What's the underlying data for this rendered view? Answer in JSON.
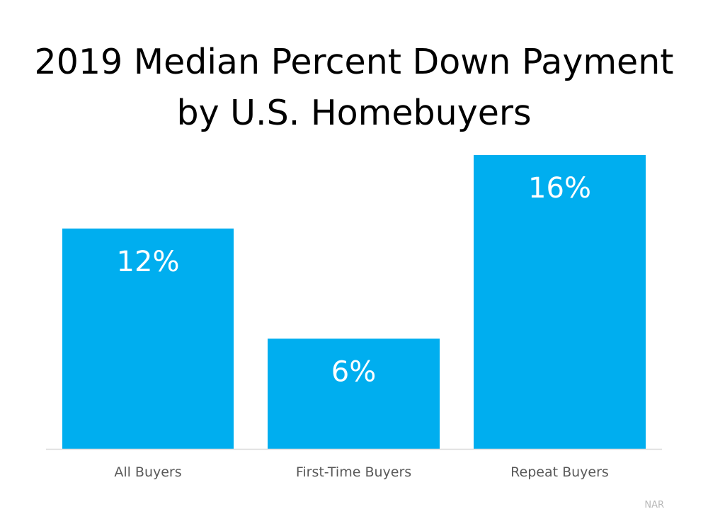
{
  "chart_data": {
    "type": "bar",
    "title_lines": [
      "2019 Median Percent Down Payment",
      "by U.S. Homebuyers"
    ],
    "categories": [
      "All Buyers",
      "First-Time Buyers",
      "Repeat Buyers"
    ],
    "values": [
      12,
      6,
      16
    ],
    "data_labels": [
      "12%",
      "6%",
      "16%"
    ],
    "unit": "%",
    "xlabel": "",
    "ylabel": "",
    "ylim": [
      0,
      16
    ],
    "grid": false,
    "legend": "none",
    "bar_color": "#00AEEF",
    "label_color": "#FFFFFF",
    "tick_label_color": "#595959",
    "axis_color": "#D9D9D9"
  },
  "source": "NAR"
}
